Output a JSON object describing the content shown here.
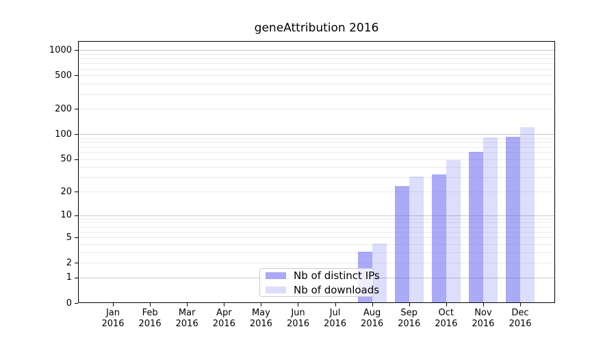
{
  "chart_data": {
    "type": "bar",
    "title": "geneAttribution 2016",
    "x": [
      "Jan 2016",
      "Feb 2016",
      "Mar 2016",
      "Apr 2016",
      "May 2016",
      "Jun 2016",
      "Jul 2016",
      "Aug 2016",
      "Sep 2016",
      "Oct 2016",
      "Nov 2016",
      "Dec 2016"
    ],
    "series": [
      {
        "name": "Nb of distinct IPs",
        "color": "rgba(85,85,238,0.5)",
        "values": [
          0,
          0,
          0,
          0,
          0,
          0,
          0,
          3,
          23,
          32,
          60,
          92
        ]
      },
      {
        "name": "Nb of downloads",
        "color": "rgba(85,85,238,0.2)",
        "values": [
          0,
          0,
          0,
          0,
          0,
          0,
          0,
          4,
          30,
          48,
          89,
          118
        ]
      }
    ],
    "xlabel": "",
    "ylabel": "",
    "yscale": "log10(value+1)",
    "yticks": [
      0,
      1,
      2,
      5,
      10,
      20,
      50,
      100,
      200,
      500,
      1000
    ],
    "ylim": [
      0,
      1284
    ],
    "grid": "horizontal major+minor log gridlines",
    "legend_position": "bottom center-left inside plot",
    "colors": {
      "bar_base": "#5555ee",
      "grid_major": "#c8c8c8",
      "grid_minor": "#ebebeb",
      "axis": "#000000",
      "legend_border": "#cccccc"
    }
  }
}
